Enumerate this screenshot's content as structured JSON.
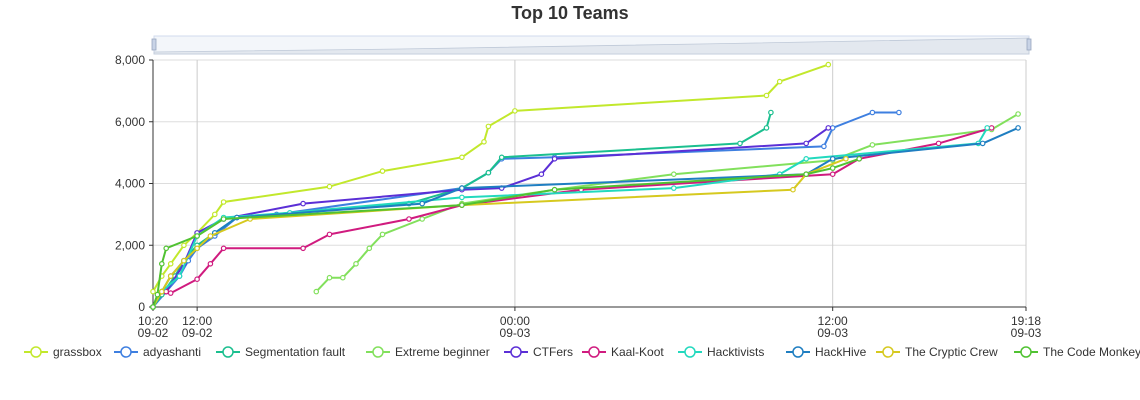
{
  "chart_data": {
    "type": "line",
    "title": "Top 10 Teams",
    "xlabel": "",
    "ylabel": "",
    "x_axis": {
      "ticks": [
        {
          "t": "2023-09-02T10:20",
          "time": "10:20",
          "date": "09-02"
        },
        {
          "t": "2023-09-02T12:00",
          "time": "12:00",
          "date": "09-02"
        },
        {
          "t": "2023-09-03T00:00",
          "time": "00:00",
          "date": "09-03"
        },
        {
          "t": "2023-09-03T12:00",
          "time": "12:00",
          "date": "09-03"
        },
        {
          "t": "2023-09-03T19:18",
          "time": "19:18",
          "date": "09-03"
        }
      ],
      "min": "2023-09-02T10:20",
      "max": "2023-09-03T19:18"
    },
    "y_axis": {
      "ticks": [
        "0",
        "2,000",
        "4,000",
        "6,000",
        "8,000"
      ],
      "tick_values": [
        0,
        2000,
        4000,
        6000,
        8000
      ],
      "ylim": [
        0,
        8000
      ]
    },
    "grid": true,
    "datazoom_slider": true,
    "legend_position": "bottom",
    "series": [
      {
        "name": "grassbox",
        "color": "#c2e82c",
        "points": [
          [
            "2023-09-02T10:20",
            500
          ],
          [
            "2023-09-02T10:40",
            1000
          ],
          [
            "2023-09-02T11:00",
            1400
          ],
          [
            "2023-09-02T11:30",
            2000
          ],
          [
            "2023-09-02T12:00",
            2400
          ],
          [
            "2023-09-02T12:40",
            3000
          ],
          [
            "2023-09-02T13:00",
            3400
          ],
          [
            "2023-09-02T17:00",
            3900
          ],
          [
            "2023-09-02T19:00",
            4400
          ],
          [
            "2023-09-02T22:00",
            4850
          ],
          [
            "2023-09-02T22:50",
            5350
          ],
          [
            "2023-09-02T23:00",
            5850
          ],
          [
            "2023-09-03T00:00",
            6350
          ],
          [
            "2023-09-03T09:30",
            6850
          ],
          [
            "2023-09-03T10:00",
            7300
          ],
          [
            "2023-09-03T11:50",
            7850
          ]
        ]
      },
      {
        "name": "adyashanti",
        "color": "#3e7fe0",
        "points": [
          [
            "2023-09-02T10:20",
            0
          ],
          [
            "2023-09-02T10:50",
            500
          ],
          [
            "2023-09-02T11:20",
            1000
          ],
          [
            "2023-09-02T11:40",
            1500
          ],
          [
            "2023-09-02T12:00",
            1900
          ],
          [
            "2023-09-02T12:40",
            2300
          ],
          [
            "2023-09-02T13:30",
            2900
          ],
          [
            "2023-09-02T15:00",
            3000
          ],
          [
            "2023-09-02T22:00",
            3850
          ],
          [
            "2023-09-02T23:00",
            4350
          ],
          [
            "2023-09-02T23:30",
            4800
          ],
          [
            "2023-09-03T01:30",
            4850
          ],
          [
            "2023-09-03T11:40",
            5200
          ],
          [
            "2023-09-03T12:00",
            5800
          ],
          [
            "2023-09-03T13:30",
            6300
          ],
          [
            "2023-09-03T14:30",
            6300
          ]
        ]
      },
      {
        "name": "Segmentation fault",
        "color": "#1bbf8f",
        "points": [
          [
            "2023-09-02T10:20",
            0
          ],
          [
            "2023-09-02T10:40",
            400
          ],
          [
            "2023-09-02T11:10",
            1000
          ],
          [
            "2023-09-02T11:30",
            1500
          ],
          [
            "2023-09-02T12:00",
            2000
          ],
          [
            "2023-09-02T12:40",
            2400
          ],
          [
            "2023-09-02T13:30",
            2900
          ],
          [
            "2023-09-02T20:00",
            3350
          ],
          [
            "2023-09-02T22:00",
            3850
          ],
          [
            "2023-09-02T23:00",
            4350
          ],
          [
            "2023-09-02T23:30",
            4850
          ],
          [
            "2023-09-03T08:30",
            5300
          ],
          [
            "2023-09-03T09:30",
            5800
          ],
          [
            "2023-09-03T09:40",
            6300
          ]
        ]
      },
      {
        "name": "Extreme beginner",
        "color": "#82e05c",
        "points": [
          [
            "2023-09-02T16:30",
            500
          ],
          [
            "2023-09-02T17:00",
            950
          ],
          [
            "2023-09-02T17:30",
            950
          ],
          [
            "2023-09-02T18:00",
            1400
          ],
          [
            "2023-09-02T18:30",
            1900
          ],
          [
            "2023-09-02T19:00",
            2350
          ],
          [
            "2023-09-02T20:30",
            2850
          ],
          [
            "2023-09-02T22:00",
            3350
          ],
          [
            "2023-09-03T01:30",
            3800
          ],
          [
            "2023-09-03T06:00",
            4300
          ],
          [
            "2023-09-03T12:00",
            4750
          ],
          [
            "2023-09-03T13:30",
            5250
          ],
          [
            "2023-09-03T18:00",
            5750
          ],
          [
            "2023-09-03T19:00",
            6250
          ]
        ]
      },
      {
        "name": "CTFers",
        "color": "#5b2fd6",
        "points": [
          [
            "2023-09-02T10:50",
            500
          ],
          [
            "2023-09-02T11:30",
            1400
          ],
          [
            "2023-09-02T12:00",
            2400
          ],
          [
            "2023-09-02T13:00",
            2850
          ],
          [
            "2023-09-02T16:00",
            3350
          ],
          [
            "2023-09-02T22:00",
            3800
          ],
          [
            "2023-09-02T23:30",
            3850
          ],
          [
            "2023-09-03T01:00",
            4300
          ],
          [
            "2023-09-03T01:30",
            4800
          ],
          [
            "2023-09-03T11:00",
            5300
          ],
          [
            "2023-09-03T11:50",
            5800
          ]
        ]
      },
      {
        "name": "Kaal-Koot",
        "color": "#d01b7f",
        "points": [
          [
            "2023-09-02T10:50",
            500
          ],
          [
            "2023-09-02T11:00",
            450
          ],
          [
            "2023-09-02T12:00",
            900
          ],
          [
            "2023-09-02T12:30",
            1400
          ],
          [
            "2023-09-02T13:00",
            1900
          ],
          [
            "2023-09-02T16:00",
            1900
          ],
          [
            "2023-09-02T17:00",
            2350
          ],
          [
            "2023-09-02T20:00",
            2850
          ],
          [
            "2023-09-02T22:00",
            3300
          ],
          [
            "2023-09-03T02:30",
            3800
          ],
          [
            "2023-09-03T12:00",
            4300
          ],
          [
            "2023-09-03T13:00",
            4800
          ],
          [
            "2023-09-03T16:00",
            5300
          ],
          [
            "2023-09-03T18:00",
            5800
          ]
        ]
      },
      {
        "name": "Hacktivists",
        "color": "#22d9be",
        "points": [
          [
            "2023-09-02T10:20",
            0
          ],
          [
            "2023-09-02T10:40",
            500
          ],
          [
            "2023-09-02T11:20",
            1000
          ],
          [
            "2023-09-02T12:00",
            2300
          ],
          [
            "2023-09-02T13:00",
            2900
          ],
          [
            "2023-09-02T15:30",
            3050
          ],
          [
            "2023-09-02T22:00",
            3550
          ],
          [
            "2023-09-03T06:00",
            3850
          ],
          [
            "2023-09-03T10:00",
            4300
          ],
          [
            "2023-09-03T11:00",
            4800
          ],
          [
            "2023-09-03T17:30",
            5300
          ],
          [
            "2023-09-03T17:50",
            5800
          ]
        ]
      },
      {
        "name": "HackHive",
        "color": "#1f7ec1",
        "points": [
          [
            "2023-09-02T10:20",
            0
          ],
          [
            "2023-09-02T10:40",
            500
          ],
          [
            "2023-09-02T11:00",
            1000
          ],
          [
            "2023-09-02T11:30",
            1500
          ],
          [
            "2023-09-02T12:40",
            2400
          ],
          [
            "2023-09-02T13:30",
            2900
          ],
          [
            "2023-09-02T20:30",
            3350
          ],
          [
            "2023-09-02T22:00",
            3850
          ],
          [
            "2023-09-03T11:00",
            4300
          ],
          [
            "2023-09-03T12:00",
            4800
          ],
          [
            "2023-09-03T17:40",
            5300
          ],
          [
            "2023-09-03T19:00",
            5800
          ]
        ]
      },
      {
        "name": "The Cryptic Crew",
        "color": "#d6c91f",
        "points": [
          [
            "2023-09-02T10:20",
            0
          ],
          [
            "2023-09-02T10:40",
            500
          ],
          [
            "2023-09-02T11:00",
            1000
          ],
          [
            "2023-09-02T11:30",
            1500
          ],
          [
            "2023-09-02T12:00",
            1900
          ],
          [
            "2023-09-02T12:30",
            2300
          ],
          [
            "2023-09-02T14:00",
            2850
          ],
          [
            "2023-09-02T22:00",
            3300
          ],
          [
            "2023-09-03T10:30",
            3800
          ],
          [
            "2023-09-03T11:00",
            4300
          ],
          [
            "2023-09-03T12:30",
            4800
          ]
        ]
      },
      {
        "name": "The Code Monkeys",
        "color": "#50c232",
        "points": [
          [
            "2023-09-02T10:20",
            0
          ],
          [
            "2023-09-02T10:30",
            400
          ],
          [
            "2023-09-02T10:40",
            1400
          ],
          [
            "2023-09-02T10:50",
            1900
          ],
          [
            "2023-09-02T12:00",
            2300
          ],
          [
            "2023-09-02T13:00",
            2850
          ],
          [
            "2023-09-02T22:00",
            3300
          ],
          [
            "2023-09-03T01:30",
            3800
          ],
          [
            "2023-09-03T11:00",
            4300
          ],
          [
            "2023-09-03T12:00",
            4500
          ],
          [
            "2023-09-03T13:00",
            4800
          ]
        ]
      }
    ]
  }
}
